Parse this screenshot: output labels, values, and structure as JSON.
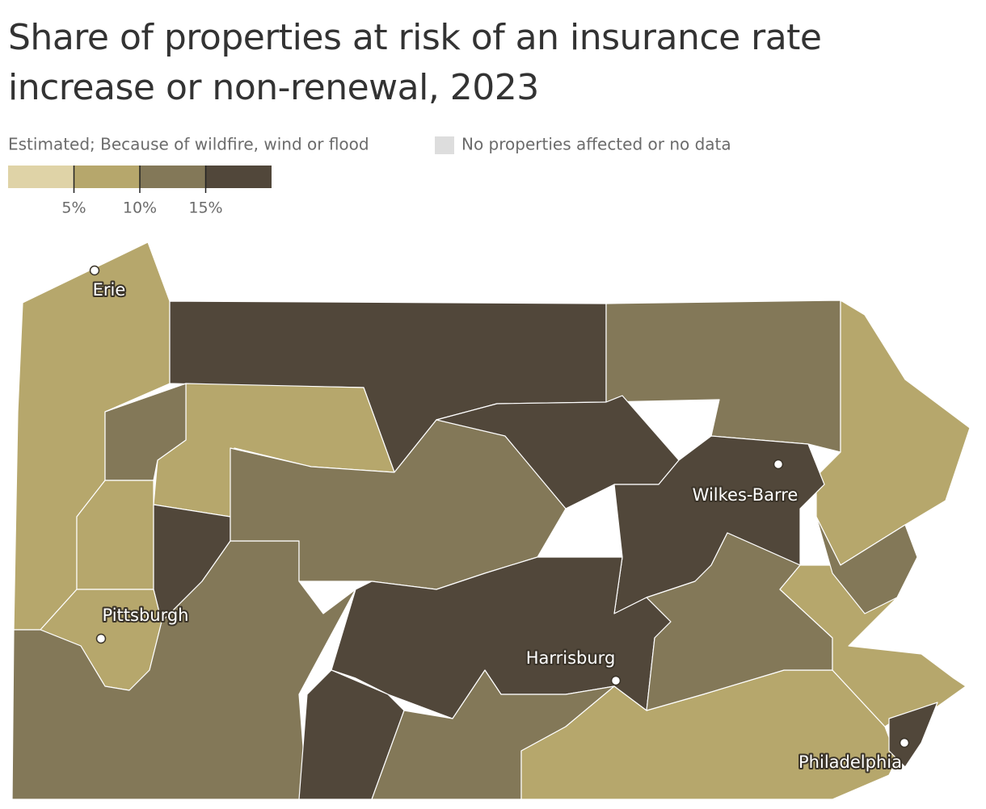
{
  "chart_data": {
    "type": "choropleth",
    "title": "Share of properties at risk of an insurance rate increase or non-renewal, 2023",
    "subtitle": "Estimated; Because of wildfire, wind or flood",
    "no_data_label": "No properties affected or no data",
    "no_data_color": "#dddddd",
    "legend": {
      "colors": [
        "#dfd3a7",
        "#b6a76c",
        "#837858",
        "#51473a"
      ],
      "xlim": [
        0,
        20
      ],
      "xticks": [
        {
          "value": 5,
          "label": "5%"
        },
        {
          "value": 10,
          "label": "10%"
        },
        {
          "value": 15,
          "label": "15%"
        }
      ]
    },
    "values": [
      7.5,
      17.5,
      12.5,
      7.5,
      7.5,
      12.5,
      7.5,
      17.5,
      7.5,
      12.5,
      12.5,
      17.5,
      17.5,
      17.5,
      17.5,
      12.5,
      7.5,
      12.5,
      7.5,
      12.5,
      17.5
    ],
    "cities": [
      "Erie",
      "Pittsburgh",
      "Harrisburg",
      "Wilkes-Barre",
      "Philadelphia"
    ]
  }
}
